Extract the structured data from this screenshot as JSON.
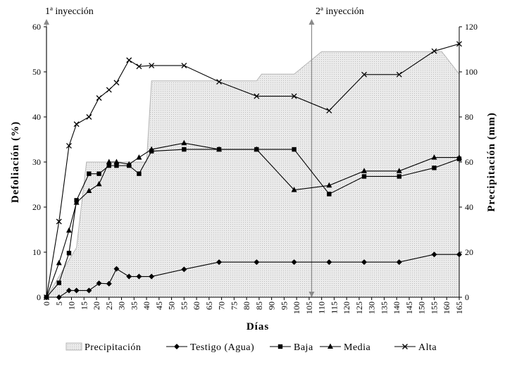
{
  "chart_data": {
    "type": "line",
    "title": "",
    "xlabel": "Días",
    "ylabel": "Defoliación  (%)",
    "y2label": "Precipitación  (mm)",
    "xlim": [
      0,
      165
    ],
    "ylim": [
      0,
      60
    ],
    "y2lim": [
      0,
      120
    ],
    "xticks": [
      0,
      5,
      10,
      15,
      20,
      25,
      30,
      35,
      40,
      45,
      50,
      55,
      60,
      65,
      70,
      75,
      80,
      85,
      90,
      95,
      100,
      105,
      110,
      115,
      120,
      125,
      130,
      135,
      140,
      145,
      150,
      155,
      160,
      165
    ],
    "yticks": [
      0,
      10,
      20,
      30,
      40,
      50,
      60
    ],
    "y2ticks": [
      0,
      20,
      40,
      60,
      80,
      100,
      120
    ],
    "grid": false,
    "legend_position": "bottom",
    "annotations": [
      {
        "text": "1ª inyección",
        "x": 0
      },
      {
        "text": "2ª inyección",
        "x": 106
      }
    ],
    "area_series": {
      "name": "Precipitación",
      "axis": "right",
      "x": [
        0,
        12,
        16,
        40,
        42,
        84,
        86,
        99,
        110,
        112,
        158,
        165
      ],
      "y": [
        0,
        22,
        60,
        60,
        96,
        96,
        99,
        99,
        109,
        109,
        109,
        99
      ]
    },
    "series": [
      {
        "name": "Testigo (Agua)",
        "marker": "diamond",
        "x": [
          0,
          5,
          9,
          12,
          17,
          21,
          25,
          28,
          33,
          37,
          42,
          55,
          69,
          84,
          99,
          113,
          127,
          141,
          155,
          165
        ],
        "y": [
          0,
          0,
          1.5,
          1.5,
          1.5,
          3.1,
          3,
          6.3,
          4.6,
          4.6,
          4.6,
          6.2,
          7.8,
          7.8,
          7.8,
          7.8,
          7.8,
          7.8,
          9.5,
          9.5
        ]
      },
      {
        "name": "Baja",
        "marker": "square",
        "x": [
          0,
          5,
          9,
          12,
          17,
          21,
          25,
          28,
          33,
          37,
          42,
          55,
          69,
          84,
          99,
          113,
          127,
          141,
          155,
          165
        ],
        "y": [
          0,
          3.2,
          9.8,
          21.5,
          27.4,
          27.4,
          29.2,
          29.2,
          29.2,
          27.4,
          32.4,
          32.8,
          32.8,
          32.8,
          32.8,
          22.9,
          26.8,
          26.8,
          28.7,
          30.7
        ]
      },
      {
        "name": "Media",
        "marker": "triangle",
        "x": [
          0,
          5,
          9,
          12,
          17,
          21,
          25,
          28,
          33,
          37,
          42,
          55,
          69,
          84,
          99,
          113,
          127,
          141,
          155,
          165
        ],
        "y": [
          0,
          7.6,
          14.8,
          21,
          23.6,
          25.1,
          30,
          30,
          29.5,
          31,
          32.8,
          34.2,
          32.8,
          32.8,
          23.8,
          24.8,
          28,
          28,
          31,
          31
        ]
      },
      {
        "name": "Alta",
        "marker": "cross",
        "x": [
          0,
          5,
          9,
          12,
          17,
          21,
          25,
          28,
          33,
          37,
          42,
          55,
          69,
          84,
          99,
          113,
          127,
          141,
          155,
          165
        ],
        "y": [
          0,
          16.8,
          33.6,
          38.4,
          40,
          44.2,
          46,
          47.6,
          52.6,
          51.2,
          51.4,
          51.4,
          47.8,
          44.6,
          44.6,
          41.4,
          49.4,
          49.4,
          54.6,
          56.2
        ]
      }
    ]
  }
}
